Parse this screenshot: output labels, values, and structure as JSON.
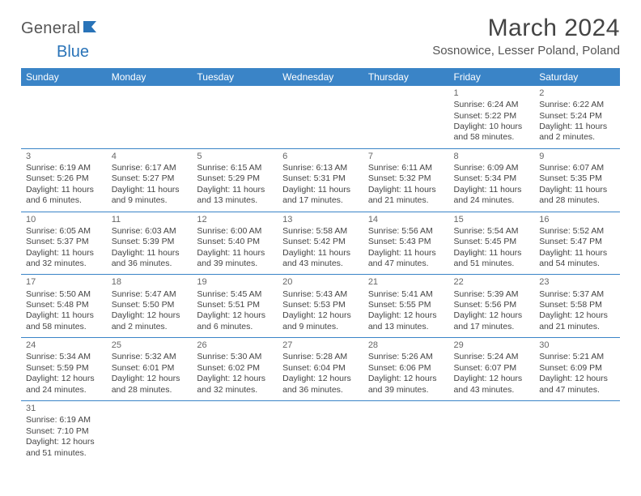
{
  "brand": {
    "part1": "General",
    "part2": "Blue"
  },
  "title": "March 2024",
  "location": "Sosnowice, Lesser Poland, Poland",
  "daynames": [
    "Sunday",
    "Monday",
    "Tuesday",
    "Wednesday",
    "Thursday",
    "Friday",
    "Saturday"
  ],
  "colors": {
    "header_bg": "#3a84c7",
    "header_fg": "#ffffff",
    "rule": "#3a84c7",
    "text": "#444444",
    "brand_blue": "#2973b8"
  },
  "weeks": [
    [
      null,
      null,
      null,
      null,
      null,
      {
        "n": "1",
        "sunrise": "Sunrise: 6:24 AM",
        "sunset": "Sunset: 5:22 PM",
        "daylight": "Daylight: 10 hours and 58 minutes."
      },
      {
        "n": "2",
        "sunrise": "Sunrise: 6:22 AM",
        "sunset": "Sunset: 5:24 PM",
        "daylight": "Daylight: 11 hours and 2 minutes."
      }
    ],
    [
      {
        "n": "3",
        "sunrise": "Sunrise: 6:19 AM",
        "sunset": "Sunset: 5:26 PM",
        "daylight": "Daylight: 11 hours and 6 minutes."
      },
      {
        "n": "4",
        "sunrise": "Sunrise: 6:17 AM",
        "sunset": "Sunset: 5:27 PM",
        "daylight": "Daylight: 11 hours and 9 minutes."
      },
      {
        "n": "5",
        "sunrise": "Sunrise: 6:15 AM",
        "sunset": "Sunset: 5:29 PM",
        "daylight": "Daylight: 11 hours and 13 minutes."
      },
      {
        "n": "6",
        "sunrise": "Sunrise: 6:13 AM",
        "sunset": "Sunset: 5:31 PM",
        "daylight": "Daylight: 11 hours and 17 minutes."
      },
      {
        "n": "7",
        "sunrise": "Sunrise: 6:11 AM",
        "sunset": "Sunset: 5:32 PM",
        "daylight": "Daylight: 11 hours and 21 minutes."
      },
      {
        "n": "8",
        "sunrise": "Sunrise: 6:09 AM",
        "sunset": "Sunset: 5:34 PM",
        "daylight": "Daylight: 11 hours and 24 minutes."
      },
      {
        "n": "9",
        "sunrise": "Sunrise: 6:07 AM",
        "sunset": "Sunset: 5:35 PM",
        "daylight": "Daylight: 11 hours and 28 minutes."
      }
    ],
    [
      {
        "n": "10",
        "sunrise": "Sunrise: 6:05 AM",
        "sunset": "Sunset: 5:37 PM",
        "daylight": "Daylight: 11 hours and 32 minutes."
      },
      {
        "n": "11",
        "sunrise": "Sunrise: 6:03 AM",
        "sunset": "Sunset: 5:39 PM",
        "daylight": "Daylight: 11 hours and 36 minutes."
      },
      {
        "n": "12",
        "sunrise": "Sunrise: 6:00 AM",
        "sunset": "Sunset: 5:40 PM",
        "daylight": "Daylight: 11 hours and 39 minutes."
      },
      {
        "n": "13",
        "sunrise": "Sunrise: 5:58 AM",
        "sunset": "Sunset: 5:42 PM",
        "daylight": "Daylight: 11 hours and 43 minutes."
      },
      {
        "n": "14",
        "sunrise": "Sunrise: 5:56 AM",
        "sunset": "Sunset: 5:43 PM",
        "daylight": "Daylight: 11 hours and 47 minutes."
      },
      {
        "n": "15",
        "sunrise": "Sunrise: 5:54 AM",
        "sunset": "Sunset: 5:45 PM",
        "daylight": "Daylight: 11 hours and 51 minutes."
      },
      {
        "n": "16",
        "sunrise": "Sunrise: 5:52 AM",
        "sunset": "Sunset: 5:47 PM",
        "daylight": "Daylight: 11 hours and 54 minutes."
      }
    ],
    [
      {
        "n": "17",
        "sunrise": "Sunrise: 5:50 AM",
        "sunset": "Sunset: 5:48 PM",
        "daylight": "Daylight: 11 hours and 58 minutes."
      },
      {
        "n": "18",
        "sunrise": "Sunrise: 5:47 AM",
        "sunset": "Sunset: 5:50 PM",
        "daylight": "Daylight: 12 hours and 2 minutes."
      },
      {
        "n": "19",
        "sunrise": "Sunrise: 5:45 AM",
        "sunset": "Sunset: 5:51 PM",
        "daylight": "Daylight: 12 hours and 6 minutes."
      },
      {
        "n": "20",
        "sunrise": "Sunrise: 5:43 AM",
        "sunset": "Sunset: 5:53 PM",
        "daylight": "Daylight: 12 hours and 9 minutes."
      },
      {
        "n": "21",
        "sunrise": "Sunrise: 5:41 AM",
        "sunset": "Sunset: 5:55 PM",
        "daylight": "Daylight: 12 hours and 13 minutes."
      },
      {
        "n": "22",
        "sunrise": "Sunrise: 5:39 AM",
        "sunset": "Sunset: 5:56 PM",
        "daylight": "Daylight: 12 hours and 17 minutes."
      },
      {
        "n": "23",
        "sunrise": "Sunrise: 5:37 AM",
        "sunset": "Sunset: 5:58 PM",
        "daylight": "Daylight: 12 hours and 21 minutes."
      }
    ],
    [
      {
        "n": "24",
        "sunrise": "Sunrise: 5:34 AM",
        "sunset": "Sunset: 5:59 PM",
        "daylight": "Daylight: 12 hours and 24 minutes."
      },
      {
        "n": "25",
        "sunrise": "Sunrise: 5:32 AM",
        "sunset": "Sunset: 6:01 PM",
        "daylight": "Daylight: 12 hours and 28 minutes."
      },
      {
        "n": "26",
        "sunrise": "Sunrise: 5:30 AM",
        "sunset": "Sunset: 6:02 PM",
        "daylight": "Daylight: 12 hours and 32 minutes."
      },
      {
        "n": "27",
        "sunrise": "Sunrise: 5:28 AM",
        "sunset": "Sunset: 6:04 PM",
        "daylight": "Daylight: 12 hours and 36 minutes."
      },
      {
        "n": "28",
        "sunrise": "Sunrise: 5:26 AM",
        "sunset": "Sunset: 6:06 PM",
        "daylight": "Daylight: 12 hours and 39 minutes."
      },
      {
        "n": "29",
        "sunrise": "Sunrise: 5:24 AM",
        "sunset": "Sunset: 6:07 PM",
        "daylight": "Daylight: 12 hours and 43 minutes."
      },
      {
        "n": "30",
        "sunrise": "Sunrise: 5:21 AM",
        "sunset": "Sunset: 6:09 PM",
        "daylight": "Daylight: 12 hours and 47 minutes."
      }
    ],
    [
      {
        "n": "31",
        "sunrise": "Sunrise: 6:19 AM",
        "sunset": "Sunset: 7:10 PM",
        "daylight": "Daylight: 12 hours and 51 minutes."
      },
      null,
      null,
      null,
      null,
      null,
      null
    ]
  ]
}
